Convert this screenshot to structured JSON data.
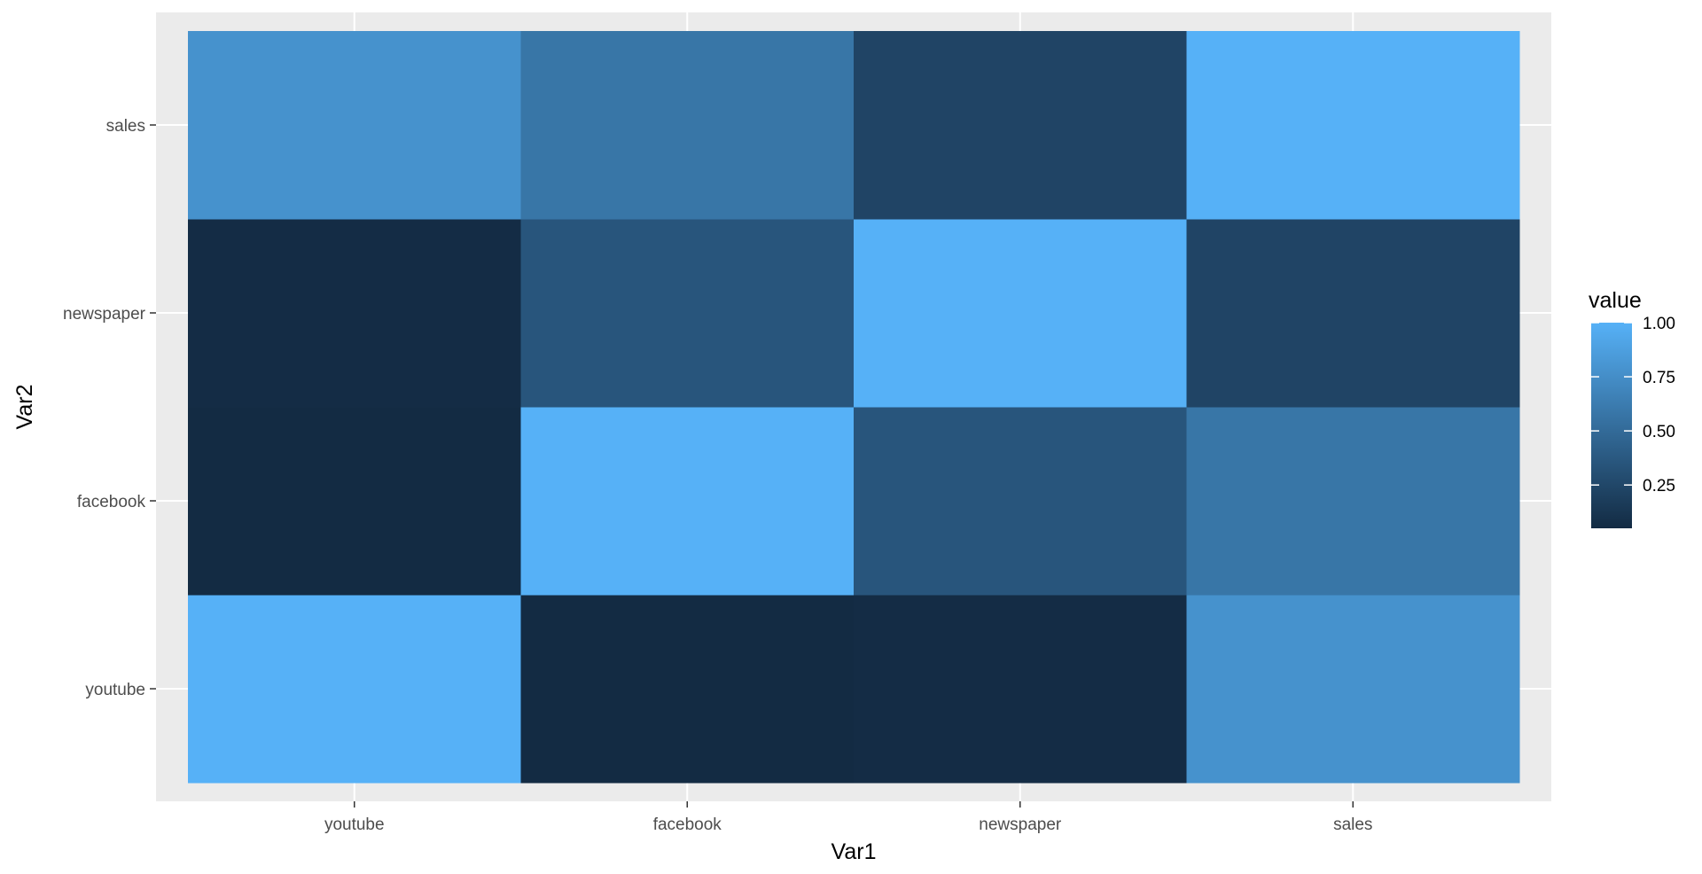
{
  "chart_data": {
    "type": "heatmap",
    "xlabel": "Var1",
    "ylabel": "Var2",
    "x_categories": [
      "youtube",
      "facebook",
      "newspaper",
      "sales"
    ],
    "y_categories": [
      "youtube",
      "facebook",
      "newspaper",
      "sales"
    ],
    "values": [
      [
        1.0,
        0.05,
        0.06,
        0.78
      ],
      [
        0.05,
        1.0,
        0.35,
        0.58
      ],
      [
        0.06,
        0.35,
        1.0,
        0.23
      ],
      [
        0.78,
        0.58,
        0.23,
        1.0
      ]
    ],
    "legend": {
      "title": "value",
      "breaks": [
        1.0,
        0.75,
        0.5,
        0.25
      ],
      "labels": [
        "1.00",
        "0.75",
        "0.50",
        "0.25"
      ],
      "range": [
        0.05,
        1.0
      ],
      "placement": "right"
    },
    "colors": {
      "low": "#132B43",
      "high": "#56B1F7",
      "panel_background": "#EBEBEB",
      "grid": "#FFFFFF"
    },
    "grid": true
  }
}
